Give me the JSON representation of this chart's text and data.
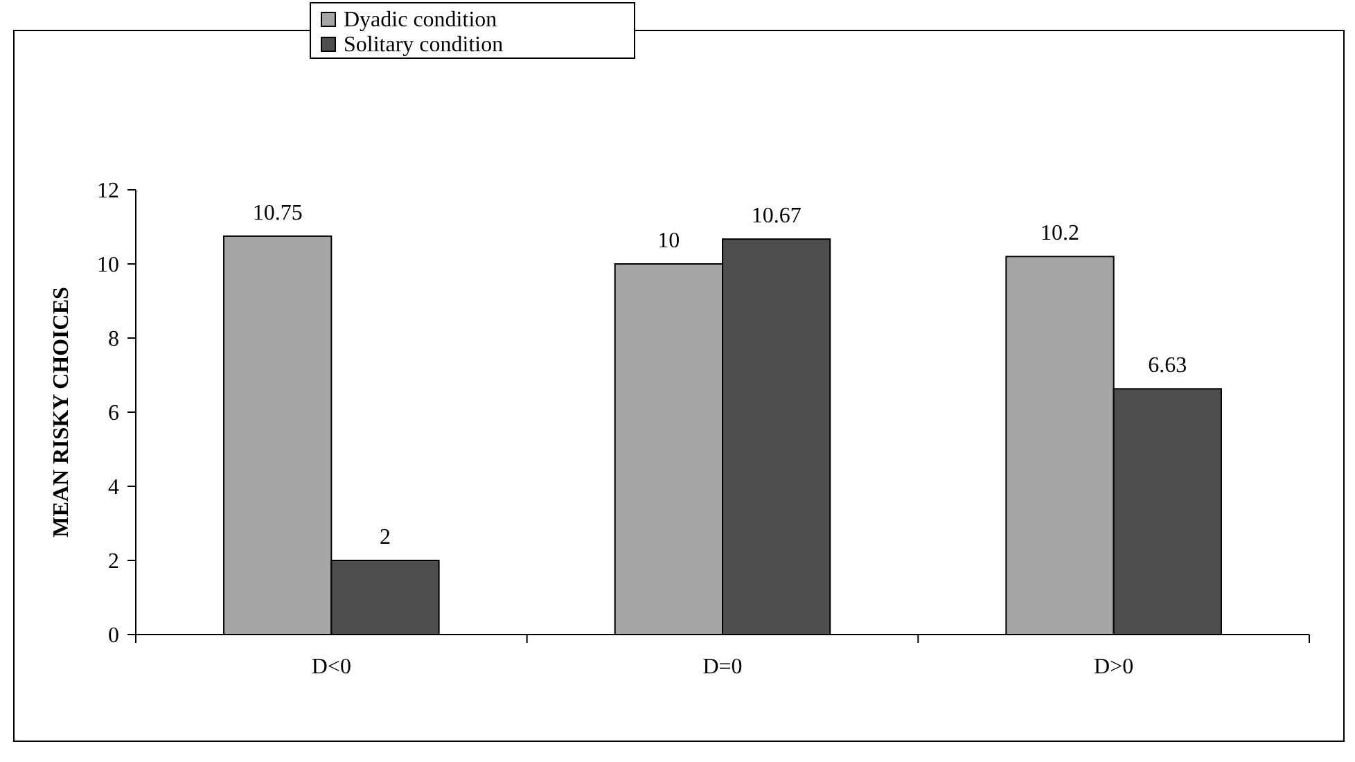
{
  "chart_data": {
    "type": "bar",
    "ylabel": "MEAN RISKY CHOICES",
    "categories": [
      "D<0",
      "D=0",
      "D>0"
    ],
    "series": [
      {
        "name": "Dyadic condition",
        "color": "#a6a6a6",
        "values": [
          10.75,
          10,
          10.2
        ]
      },
      {
        "name": "Solitary condition",
        "color": "#4d4d4d",
        "values": [
          2,
          10.67,
          6.63
        ]
      }
    ],
    "ylim": [
      0,
      12
    ],
    "yticks": [
      0,
      2,
      4,
      6,
      8,
      10,
      12
    ],
    "grid": false,
    "legend": "top",
    "data_labels": true
  }
}
